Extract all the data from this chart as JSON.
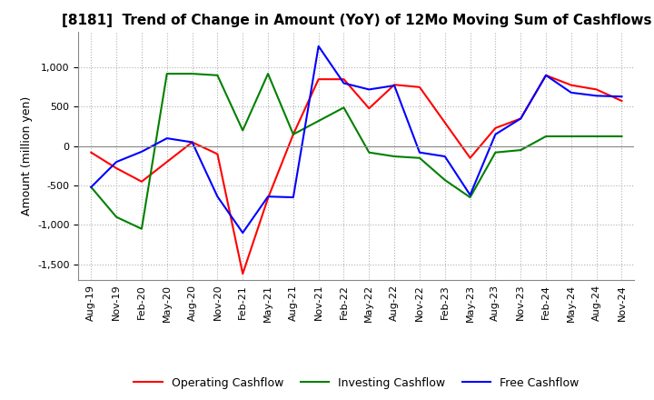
{
  "title": "[8181]  Trend of Change in Amount (YoY) of 12Mo Moving Sum of Cashflows",
  "ylabel": "Amount (million yen)",
  "x_labels": [
    "Aug-19",
    "Nov-19",
    "Feb-20",
    "May-20",
    "Aug-20",
    "Nov-20",
    "Feb-21",
    "May-21",
    "Aug-21",
    "Nov-21",
    "Feb-22",
    "May-22",
    "Aug-22",
    "Nov-22",
    "Feb-23",
    "May-23",
    "Aug-23",
    "Nov-23",
    "Feb-24",
    "May-24",
    "Aug-24",
    "Nov-24"
  ],
  "operating": [
    -80,
    -280,
    -450,
    -200,
    50,
    -100,
    -1620,
    -660,
    150,
    850,
    850,
    480,
    780,
    750,
    300,
    -150,
    230,
    350,
    900,
    775,
    720,
    575
  ],
  "investing": [
    -520,
    -900,
    -1050,
    920,
    920,
    900,
    200,
    920,
    150,
    320,
    490,
    -80,
    -130,
    -150,
    -430,
    -650,
    -80,
    -50,
    125,
    125,
    125,
    125
  ],
  "free": [
    -520,
    -200,
    -70,
    100,
    50,
    -640,
    -1100,
    -640,
    -650,
    1270,
    800,
    720,
    770,
    -80,
    -130,
    -620,
    150,
    350,
    900,
    680,
    640,
    630
  ],
  "ylim": [
    -1700,
    1450
  ],
  "yticks": [
    -1500,
    -1000,
    -500,
    0,
    500,
    1000
  ],
  "operating_color": "#ff0000",
  "investing_color": "#008000",
  "free_color": "#0000ff",
  "background_color": "#ffffff",
  "grid_color": "#b0b0b0",
  "title_fontsize": 11,
  "axis_fontsize": 9,
  "tick_fontsize": 8
}
